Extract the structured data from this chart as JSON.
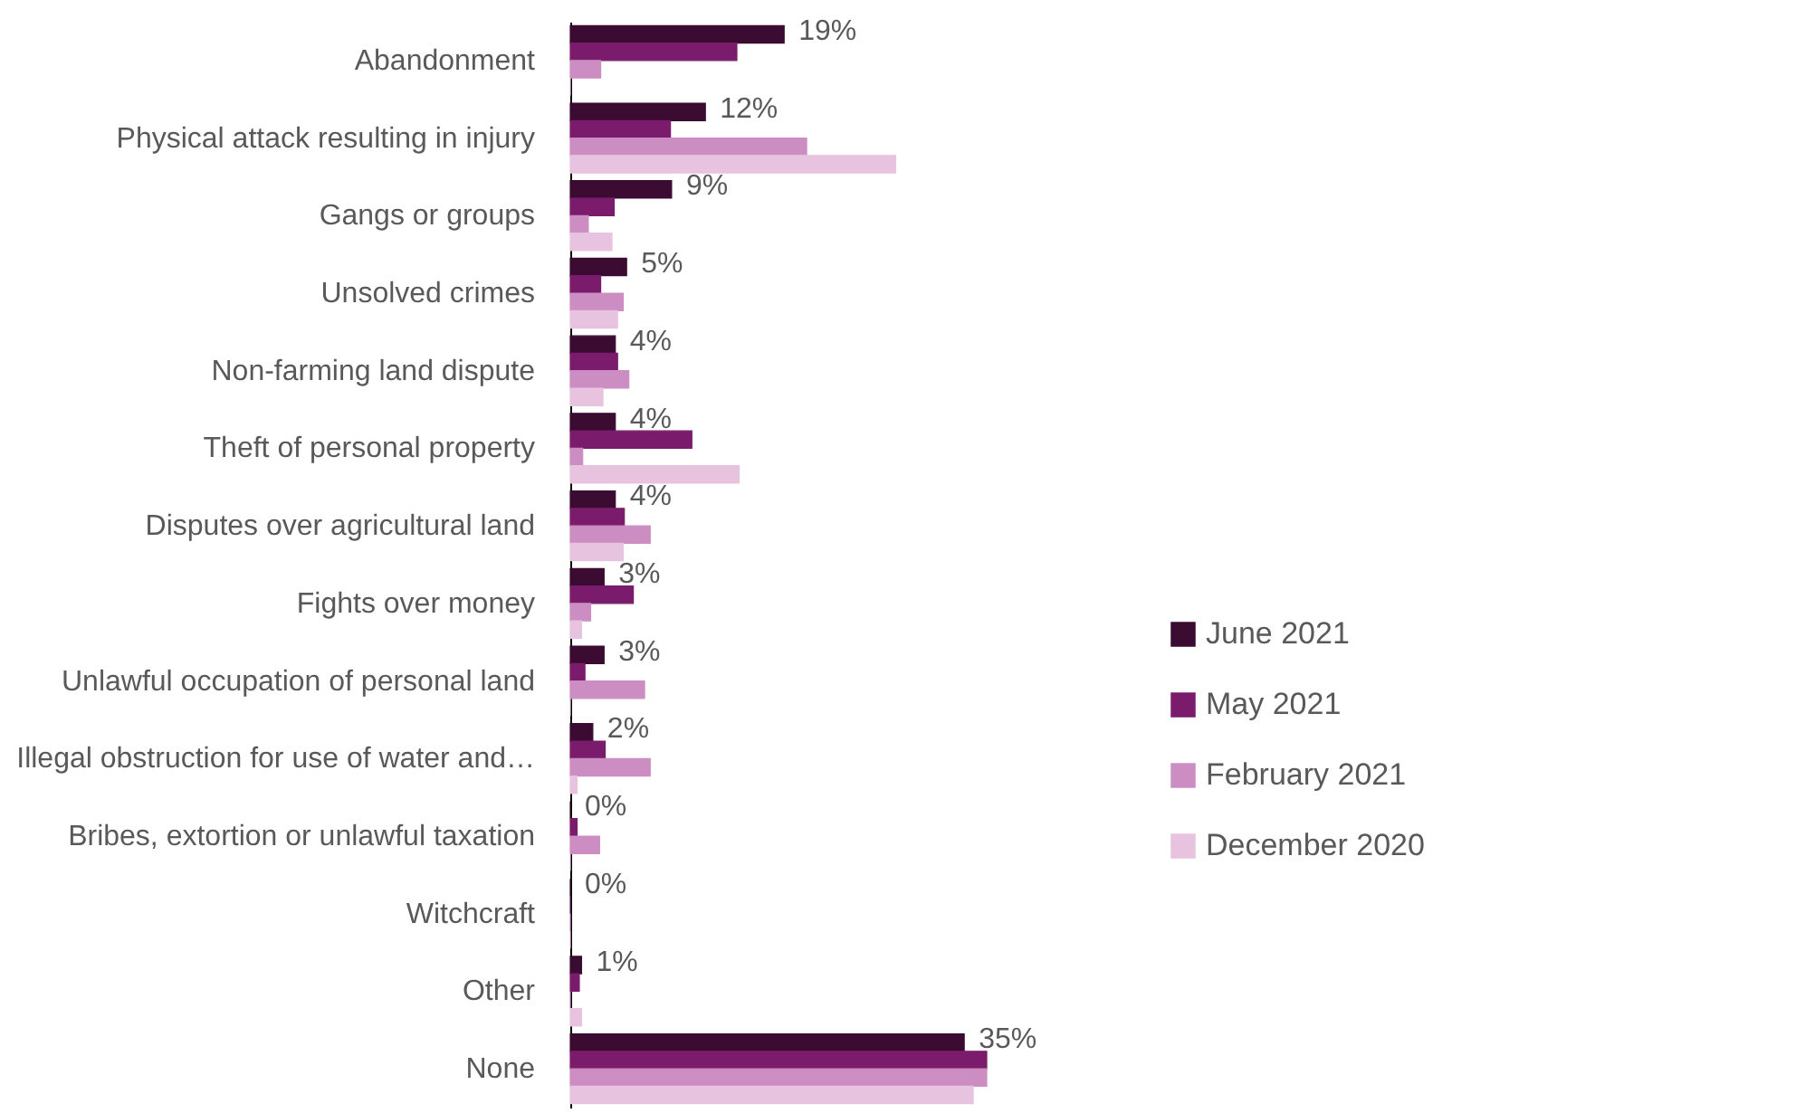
{
  "chart_data": {
    "type": "bar",
    "orientation": "horizontal",
    "legend": "right",
    "categories": [
      "Abandonment",
      "Physical attack resulting in injury",
      "Gangs or groups",
      "Unsolved crimes",
      "Non-farming land dispute",
      "Theft of personal property",
      "Disputes over agricultural land",
      "Fights over money",
      "Unlawful occupation of personal land",
      "Illegal obstruction for use of water and…",
      "Bribes, extortion or unlawful taxation",
      "Witchcraft",
      "Other",
      "None"
    ],
    "series": [
      {
        "name": "June 2021",
        "color": "#3b0b32",
        "values": [
          19,
          12,
          9,
          5,
          4,
          4,
          4,
          3,
          3,
          2,
          0,
          0,
          1,
          35
        ],
        "value_labels": [
          "19%",
          "12%",
          "9%",
          "5%",
          "4%",
          "4%",
          "4%",
          "3%",
          "3%",
          "2%",
          "0%",
          "0%",
          "1%",
          "35%"
        ]
      },
      {
        "name": "May 2021",
        "color": "#7a1c6b",
        "values": [
          14.8,
          8.9,
          3.9,
          2.7,
          4.2,
          10.8,
          4.8,
          5.6,
          1.3,
          3.1,
          0.6,
          0,
          0.8,
          37
        ]
      },
      {
        "name": "February 2021",
        "color": "#cc8dc2",
        "values": [
          2.7,
          21,
          1.6,
          4.7,
          5.2,
          1.1,
          7.1,
          1.8,
          6.6,
          7.1,
          2.6,
          0,
          0,
          37
        ]
      },
      {
        "name": "December 2020",
        "color": "#e7c3df",
        "values": [
          0,
          28.9,
          3.7,
          4.2,
          2.9,
          15,
          4.7,
          1,
          0,
          0.6,
          0,
          0,
          1,
          35.8
        ]
      }
    ]
  }
}
